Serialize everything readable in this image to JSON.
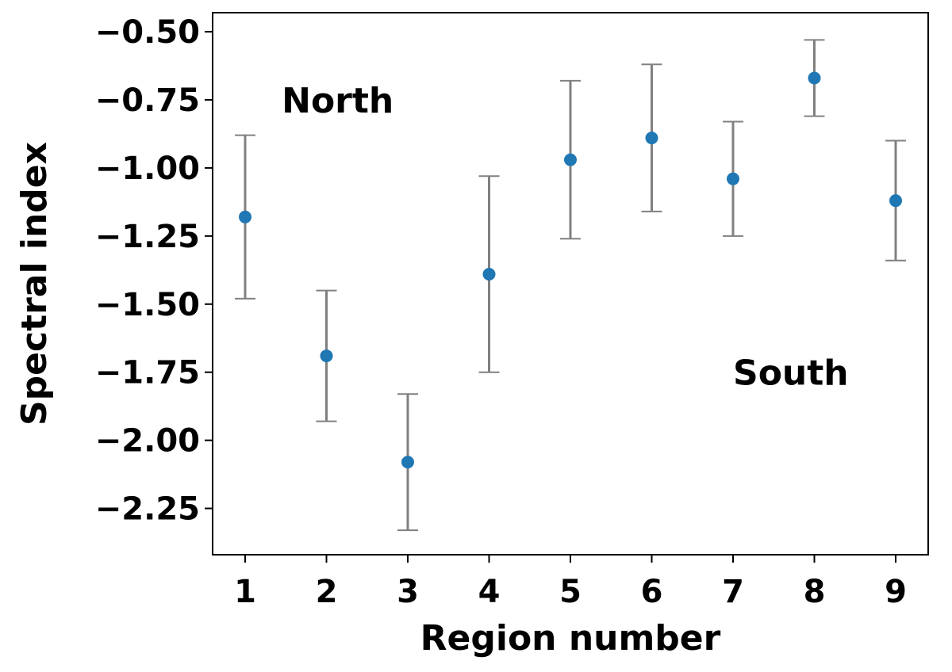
{
  "chart_data": {
    "type": "scatter",
    "xlabel": "Region number",
    "ylabel": "Spectral index",
    "xlim": [
      0.6,
      9.4
    ],
    "ylim": [
      -2.42,
      -0.43
    ],
    "x_ticks": [
      1,
      2,
      3,
      4,
      5,
      6,
      7,
      8,
      9
    ],
    "y_ticks": [
      -2.25,
      -2.0,
      -1.75,
      -1.5,
      -1.25,
      -1.0,
      -0.75,
      -0.5
    ],
    "y_tick_labels": [
      "−2.25",
      "−2.00",
      "−1.75",
      "−1.50",
      "−1.25",
      "−1.00",
      "−0.75",
      "−0.50"
    ],
    "grid": false,
    "marker_color": "#1f77b4",
    "errorbar_color": "#808080",
    "points": [
      {
        "x": 1,
        "y": -1.18,
        "err_low": 0.3,
        "err_high": 0.3
      },
      {
        "x": 2,
        "y": -1.69,
        "err_low": 0.24,
        "err_high": 0.24
      },
      {
        "x": 3,
        "y": -2.08,
        "err_low": 0.25,
        "err_high": 0.25
      },
      {
        "x": 4,
        "y": -1.39,
        "err_low": 0.36,
        "err_high": 0.36
      },
      {
        "x": 5,
        "y": -0.97,
        "err_low": 0.29,
        "err_high": 0.29
      },
      {
        "x": 6,
        "y": -0.89,
        "err_low": 0.27,
        "err_high": 0.27
      },
      {
        "x": 7,
        "y": -1.04,
        "err_low": 0.21,
        "err_high": 0.21
      },
      {
        "x": 8,
        "y": -0.67,
        "err_low": 0.14,
        "err_high": 0.14
      },
      {
        "x": 9,
        "y": -1.12,
        "err_low": 0.22,
        "err_high": 0.22
      }
    ],
    "annotations": [
      {
        "text": "North",
        "x": 1.45,
        "y": -0.75
      },
      {
        "text": "South",
        "x": 7.0,
        "y": -1.75
      }
    ]
  }
}
